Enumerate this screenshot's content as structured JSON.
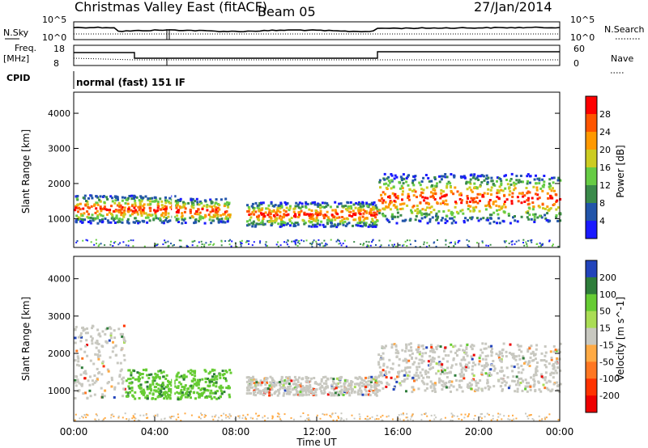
{
  "header": {
    "station": "Christmas Valley East (fitACF)",
    "beam": "Beam 05",
    "date": "27/Jan/2014"
  },
  "panels": {
    "nsky_label": "N.Sky",
    "nsearch_label": "N.Search",
    "nsky_ticks": [
      "10^5",
      "10^0"
    ],
    "nsearch_ticks": [
      "10^5",
      "10^0"
    ],
    "freq_label_1": "Freq.",
    "freq_label_2": "[MHz]",
    "freq_ticks": [
      "18",
      "8"
    ],
    "nave_label": "Nave",
    "nave_ticks": [
      "60",
      "0"
    ],
    "cpid_label": "CPID",
    "cpid_value": "normal (fast) 151 IF"
  },
  "chart_data": [
    {
      "type": "heatmap",
      "title": "",
      "ylabel": "Slant Range [km]",
      "xlabel": "",
      "ylim": [
        180,
        4600
      ],
      "yticks": [
        "4000",
        "3000",
        "2000",
        "1000"
      ],
      "colorbar_label": "Power [dB]",
      "colorbar_ticks": [
        "28",
        "24",
        "20",
        "16",
        "12",
        "8",
        "4"
      ],
      "colors": [
        "#1a1aff",
        "#2255aa",
        "#3a8a4a",
        "#66cc44",
        "#cccc22",
        "#ff9900",
        "#ff5500",
        "#ff0000"
      ],
      "echo_bands": [
        {
          "x": [
            0,
            5
          ],
          "range_km": [
            900,
            1700
          ],
          "peak_db": 28
        },
        {
          "x": [
            5,
            7.7
          ],
          "range_km": [
            900,
            1600
          ],
          "peak_db": 24
        },
        {
          "x": [
            8.5,
            15
          ],
          "range_km": [
            800,
            1500
          ],
          "peak_db": 28
        },
        {
          "x": [
            15,
            24
          ],
          "range_km": [
            900,
            2300
          ],
          "peak_db": 28
        }
      ]
    },
    {
      "type": "heatmap",
      "title": "",
      "ylabel": "Slant Range [km]",
      "xlabel": "Time UT",
      "ylim": [
        180,
        4600
      ],
      "yticks": [
        "4000",
        "3000",
        "2000",
        "1000"
      ],
      "xticks": [
        "00:00",
        "04:00",
        "08:00",
        "12:00",
        "16:00",
        "20:00",
        "00:00"
      ],
      "colorbar_label": "Velocity [m s^-1]",
      "colorbar_ticks": [
        "200",
        "100",
        "50",
        "15",
        "-15",
        "-50",
        "-100",
        "-200"
      ],
      "colors": [
        "#2244bb",
        "#2e7d3a",
        "#66cc33",
        "#aadd55",
        "#c8c8c0",
        "#ffaa44",
        "#ff7722",
        "#ff3300",
        "#ee0000"
      ],
      "echo_bands": [
        {
          "x": [
            0,
            2.5
          ],
          "range_km": [
            800,
            2800
          ],
          "velocity": 0
        },
        {
          "x": [
            2.5,
            7.7
          ],
          "range_km": [
            800,
            1600
          ],
          "velocity": 30
        },
        {
          "x": [
            8.5,
            15
          ],
          "range_km": [
            900,
            1400
          ],
          "velocity": 0
        },
        {
          "x": [
            15,
            24
          ],
          "range_km": [
            1000,
            2300
          ],
          "velocity": 0
        }
      ]
    }
  ]
}
